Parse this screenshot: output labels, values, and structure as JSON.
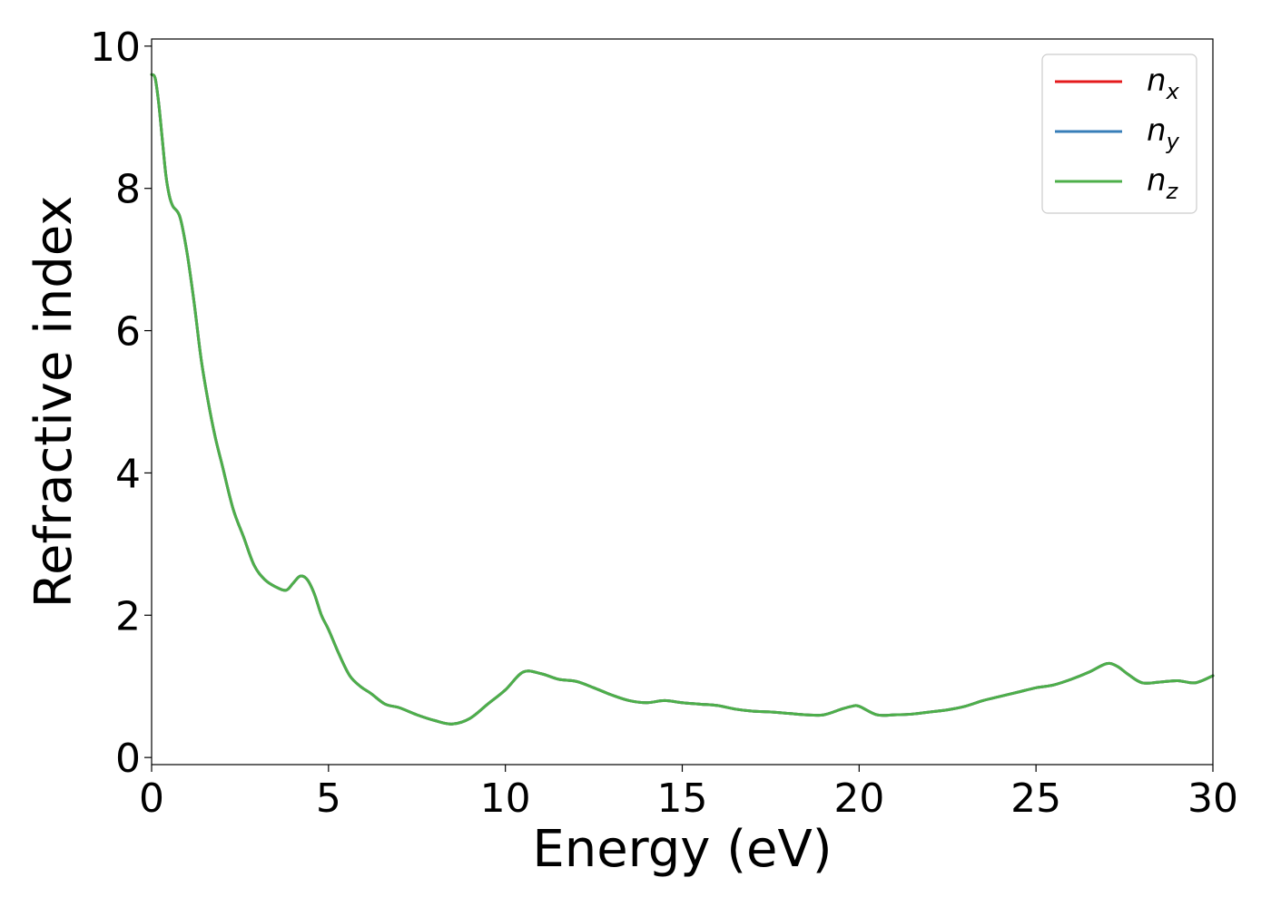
{
  "chart_data": {
    "type": "line",
    "title": "",
    "xlabel": "Energy (eV)",
    "ylabel": "Refractive index",
    "xlim": [
      0,
      30
    ],
    "ylim": [
      -0.1,
      10.1
    ],
    "xticks": [
      0,
      5,
      10,
      15,
      20,
      25,
      30
    ],
    "yticks": [
      0,
      2,
      4,
      6,
      8,
      10
    ],
    "grid": false,
    "legend_position": "top-right",
    "x": [
      0,
      0.1,
      0.2,
      0.3,
      0.4,
      0.5,
      0.6,
      0.8,
      1.0,
      1.2,
      1.4,
      1.6,
      1.8,
      2.0,
      2.3,
      2.6,
      2.9,
      3.2,
      3.5,
      3.8,
      4.0,
      4.2,
      4.4,
      4.6,
      4.8,
      5.0,
      5.3,
      5.6,
      5.9,
      6.2,
      6.6,
      7.0,
      7.5,
      8.0,
      8.5,
      9.0,
      9.5,
      10.0,
      10.5,
      11.0,
      11.5,
      12.0,
      12.5,
      13.0,
      13.5,
      14.0,
      14.5,
      15.0,
      15.5,
      16.0,
      16.5,
      17.0,
      17.5,
      18.0,
      18.5,
      19.0,
      19.5,
      19.8,
      20.0,
      20.5,
      21.0,
      21.5,
      22.0,
      22.5,
      23.0,
      23.5,
      24.0,
      24.5,
      25.0,
      25.5,
      26.0,
      26.5,
      27.0,
      27.3,
      27.6,
      28.0,
      28.5,
      29.0,
      29.5,
      30.0
    ],
    "series": [
      {
        "name": "n_x",
        "color": "#e41a1c",
        "values": [
          9.6,
          9.55,
          9.2,
          8.7,
          8.2,
          7.9,
          7.75,
          7.6,
          7.1,
          6.4,
          5.6,
          5.0,
          4.5,
          4.1,
          3.5,
          3.1,
          2.7,
          2.5,
          2.4,
          2.35,
          2.45,
          2.55,
          2.5,
          2.3,
          2.0,
          1.8,
          1.45,
          1.15,
          1.0,
          0.9,
          0.75,
          0.7,
          0.6,
          0.52,
          0.47,
          0.55,
          0.75,
          0.95,
          1.2,
          1.18,
          1.1,
          1.07,
          0.98,
          0.88,
          0.8,
          0.77,
          0.8,
          0.77,
          0.75,
          0.73,
          0.68,
          0.65,
          0.64,
          0.62,
          0.6,
          0.6,
          0.68,
          0.72,
          0.72,
          0.6,
          0.6,
          0.61,
          0.64,
          0.67,
          0.72,
          0.8,
          0.86,
          0.92,
          0.98,
          1.02,
          1.1,
          1.2,
          1.32,
          1.28,
          1.17,
          1.05,
          1.06,
          1.08,
          1.05,
          1.15
        ]
      },
      {
        "name": "n_y",
        "color": "#377eb8",
        "values": [
          9.6,
          9.55,
          9.2,
          8.7,
          8.2,
          7.9,
          7.75,
          7.6,
          7.1,
          6.4,
          5.6,
          5.0,
          4.5,
          4.1,
          3.5,
          3.1,
          2.7,
          2.5,
          2.4,
          2.35,
          2.45,
          2.55,
          2.5,
          2.3,
          2.0,
          1.8,
          1.45,
          1.15,
          1.0,
          0.9,
          0.75,
          0.7,
          0.6,
          0.52,
          0.47,
          0.55,
          0.75,
          0.95,
          1.2,
          1.18,
          1.1,
          1.07,
          0.98,
          0.88,
          0.8,
          0.77,
          0.8,
          0.77,
          0.75,
          0.73,
          0.68,
          0.65,
          0.64,
          0.62,
          0.6,
          0.6,
          0.68,
          0.72,
          0.72,
          0.6,
          0.6,
          0.61,
          0.64,
          0.67,
          0.72,
          0.8,
          0.86,
          0.92,
          0.98,
          1.02,
          1.1,
          1.2,
          1.32,
          1.28,
          1.17,
          1.05,
          1.06,
          1.08,
          1.05,
          1.15
        ]
      },
      {
        "name": "n_z",
        "color": "#4daf4a",
        "values": [
          9.6,
          9.55,
          9.2,
          8.7,
          8.2,
          7.9,
          7.75,
          7.6,
          7.1,
          6.4,
          5.6,
          5.0,
          4.5,
          4.1,
          3.5,
          3.1,
          2.7,
          2.5,
          2.4,
          2.35,
          2.45,
          2.55,
          2.5,
          2.3,
          2.0,
          1.8,
          1.45,
          1.15,
          1.0,
          0.9,
          0.75,
          0.7,
          0.6,
          0.52,
          0.47,
          0.55,
          0.75,
          0.95,
          1.2,
          1.18,
          1.1,
          1.07,
          0.98,
          0.88,
          0.8,
          0.77,
          0.8,
          0.77,
          0.75,
          0.73,
          0.68,
          0.65,
          0.64,
          0.62,
          0.6,
          0.6,
          0.68,
          0.72,
          0.72,
          0.6,
          0.6,
          0.61,
          0.64,
          0.67,
          0.72,
          0.8,
          0.86,
          0.92,
          0.98,
          1.02,
          1.1,
          1.2,
          1.32,
          1.28,
          1.17,
          1.05,
          1.06,
          1.08,
          1.05,
          1.15
        ]
      }
    ],
    "legend": [
      {
        "base": "n",
        "sub": "x",
        "color": "#e41a1c"
      },
      {
        "base": "n",
        "sub": "y",
        "color": "#377eb8"
      },
      {
        "base": "n",
        "sub": "z",
        "color": "#4daf4a"
      }
    ]
  }
}
